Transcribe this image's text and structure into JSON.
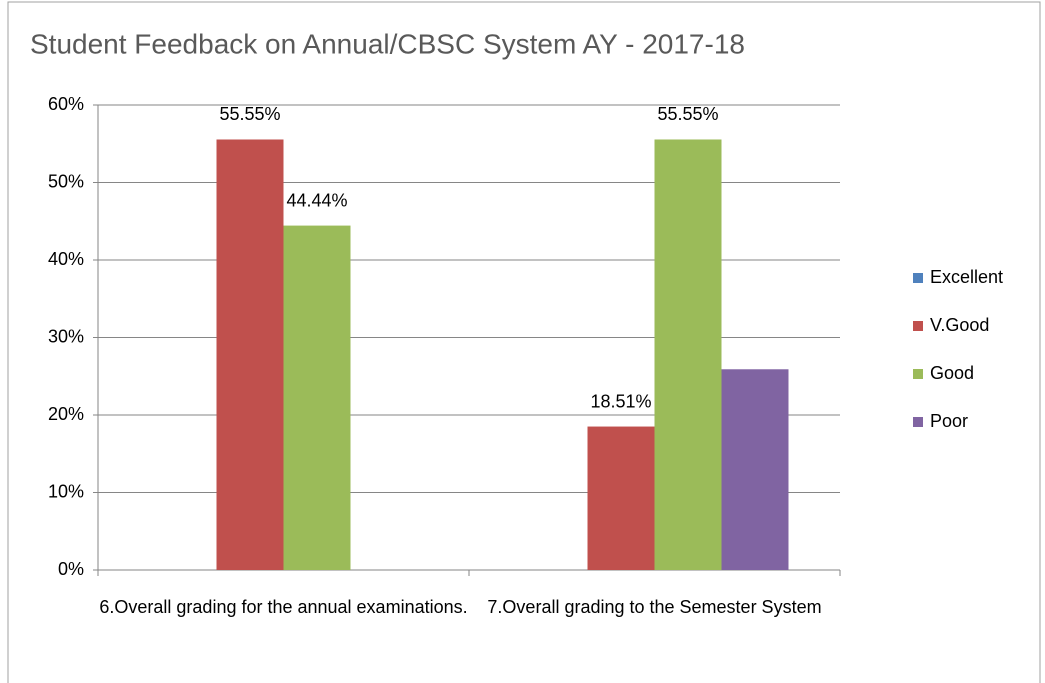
{
  "chart_data": {
    "type": "bar",
    "title": "Student Feedback on Annual/CBSC System AY - 2017-18",
    "categories": [
      "6.Overall grading for the annual examinations.",
      "7.Overall grading to the Semester System"
    ],
    "series": [
      {
        "name": "Excellent",
        "color": "#4f81bd",
        "values": [
          0,
          0
        ]
      },
      {
        "name": "V.Good",
        "color": "#c0504d",
        "values": [
          55.55,
          18.51
        ],
        "value_labels": [
          "55.55%",
          "18.51%"
        ]
      },
      {
        "name": "Good",
        "color": "#9bbb59",
        "values": [
          44.44,
          55.55
        ],
        "value_labels": [
          "44.44%",
          "55.55%"
        ]
      },
      {
        "name": "Poor",
        "color": "#8064a2",
        "values": [
          0,
          25.9
        ]
      }
    ],
    "ylim": [
      0,
      60
    ],
    "yticks": [
      {
        "value": 0,
        "label": "0%"
      },
      {
        "value": 10,
        "label": "10%"
      },
      {
        "value": 20,
        "label": "20%"
      },
      {
        "value": 30,
        "label": "30%"
      },
      {
        "value": 40,
        "label": "40%"
      },
      {
        "value": 50,
        "label": "50%"
      },
      {
        "value": 60,
        "label": "60%"
      }
    ],
    "grid": true,
    "legend": "right"
  }
}
